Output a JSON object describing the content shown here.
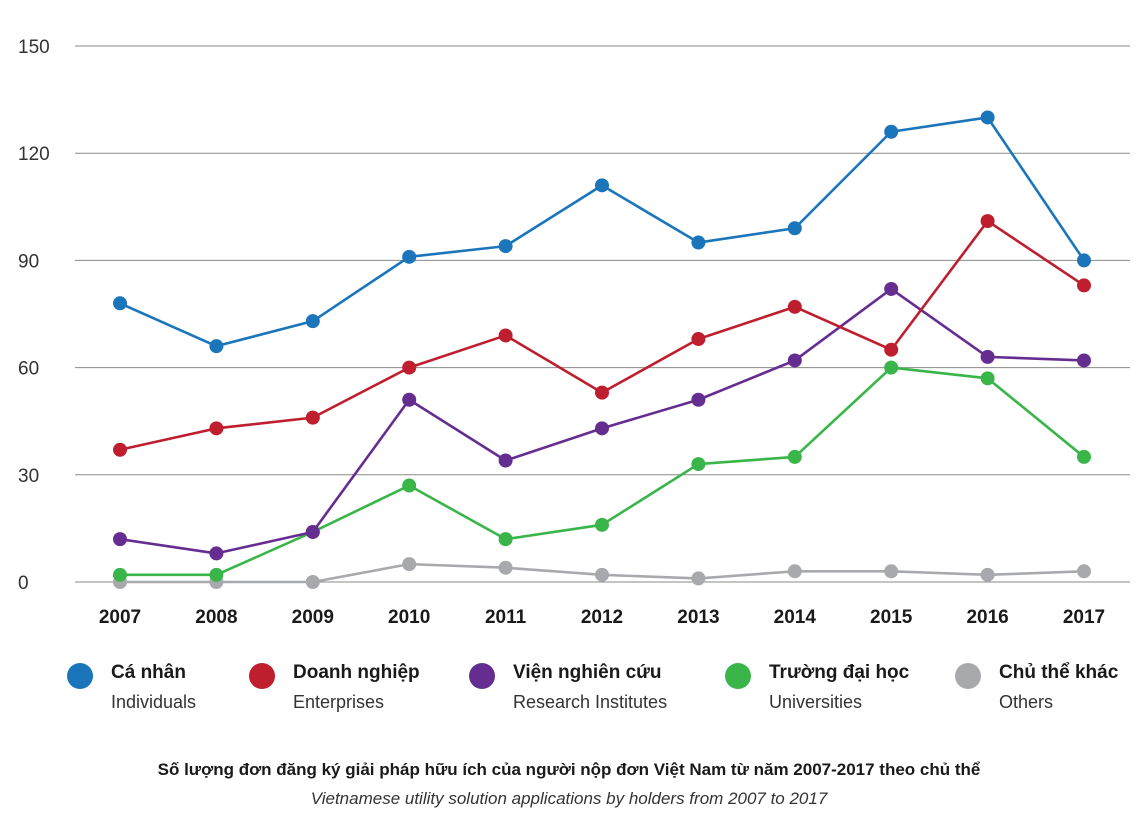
{
  "chart_data": {
    "type": "line",
    "title": "Số lượng đơn đăng ký giải pháp hữu ích của người nộp đơn Việt Nam từ năm 2007-2017 theo chủ thể",
    "subtitle": "Vietnamese utility solution applications by holders from 2007 to 2017",
    "categories": [
      "2007",
      "2008",
      "2009",
      "2010",
      "2011",
      "2012",
      "2013",
      "2014",
      "2015",
      "2016",
      "2017"
    ],
    "y_ticks": [
      "0",
      "30",
      "60",
      "90",
      "120",
      "150"
    ],
    "ylim": [
      0,
      150
    ],
    "grid": true,
    "legend_position": "bottom",
    "series": [
      {
        "name": "Cá nhân",
        "name_en": "Individuals",
        "color": "#1b75bb",
        "values": [
          78,
          66,
          73,
          91,
          94,
          111,
          95,
          99,
          126,
          130,
          90
        ]
      },
      {
        "name": "Doanh nghiệp",
        "name_en": "Enterprises",
        "color": "#be1e2d",
        "values": [
          37,
          43,
          46,
          60,
          69,
          53,
          68,
          77,
          65,
          101,
          83
        ]
      },
      {
        "name": "Viện nghiên cứu",
        "name_en": "Research Institutes",
        "color": "#662d91",
        "values": [
          12,
          8,
          14,
          51,
          34,
          43,
          51,
          62,
          82,
          63,
          62
        ]
      },
      {
        "name": "Trường đại học",
        "name_en": "Universities",
        "color": "#39b54a",
        "values": [
          2,
          2,
          14,
          27,
          12,
          16,
          33,
          35,
          60,
          57,
          35
        ]
      },
      {
        "name": "Chủ thể khác",
        "name_en": "Others",
        "color": "#a7a9ac",
        "values": [
          0,
          0,
          0,
          5,
          4,
          2,
          1,
          3,
          3,
          2,
          3
        ]
      }
    ]
  }
}
